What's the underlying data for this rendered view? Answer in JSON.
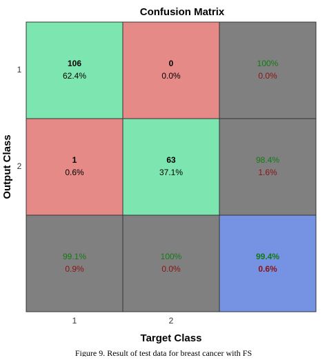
{
  "chart_data": {
    "type": "confusion_matrix",
    "title": "Confusion Matrix",
    "xlabel": "Target Class",
    "ylabel": "Output Class",
    "x_categories": [
      "1",
      "2"
    ],
    "y_categories": [
      "1",
      "2"
    ],
    "counts": [
      [
        106,
        0
      ],
      [
        1,
        63
      ]
    ],
    "percents": [
      [
        62.4,
        0.0
      ],
      [
        0.6,
        37.1
      ]
    ],
    "percent_labels": [
      [
        "62.4%",
        "0.0%"
      ],
      [
        "0.6%",
        "37.1%"
      ]
    ],
    "row_summary": {
      "correct": [
        100,
        98.4
      ],
      "correct_labels": [
        "100%",
        "98.4%"
      ],
      "wrong": [
        0.0,
        1.6
      ],
      "wrong_labels": [
        "0.0%",
        "1.6%"
      ]
    },
    "column_summary": {
      "correct": [
        99.1,
        100
      ],
      "correct_labels": [
        "99.1%",
        "100%"
      ],
      "wrong": [
        0.9,
        0.0
      ],
      "wrong_labels": [
        "0.9%",
        "0.0%"
      ]
    },
    "overall": {
      "correct": 99.4,
      "correct_label": "99.4%",
      "wrong": 0.6,
      "wrong_label": "0.6%"
    },
    "colors": {
      "correct": "#7de6b0",
      "incorrect": "#e58a87",
      "summary": "#808080",
      "overall": "#7592e3",
      "correct_text": "#137a13",
      "wrong_text": "#8a1212"
    },
    "caption": "Figure 9. Result of test data for breast cancer with FS"
  }
}
